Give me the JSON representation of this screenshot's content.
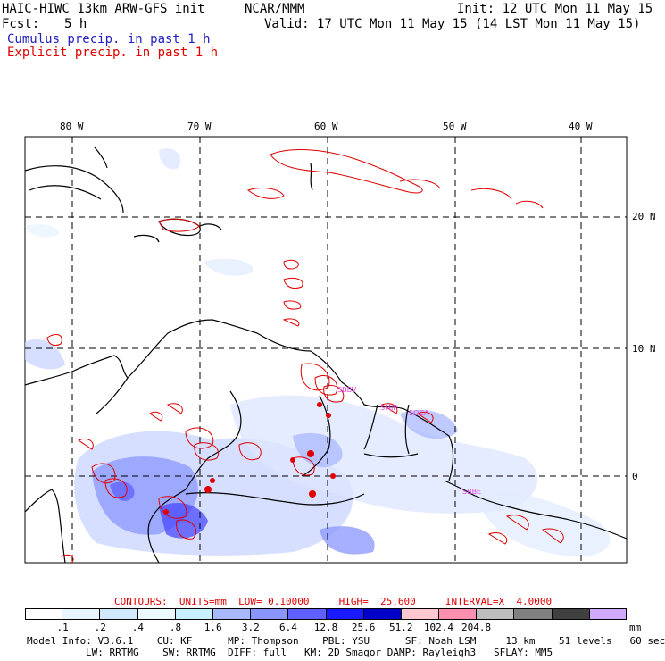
{
  "header": {
    "model": "HAIC-HIWC 13km ARW-GFS init",
    "org": "NCAR/MMM",
    "init": "Init: 12 UTC Mon 11 May 15",
    "fcst_label": "Fcst:",
    "fcst_value": "5 h",
    "valid": "Valid: 17 UTC Mon 11 May 15 (14 LST Mon 11 May 15)",
    "legend_cumulus": "Cumulus precip. in past 1 h",
    "legend_explicit": "Explicit precip. in past 1 h"
  },
  "colors": {
    "cumulus": "#2020c0",
    "explicit": "#e00000",
    "land_outline": "#000000",
    "station_label": "#e040e0"
  },
  "map": {
    "lon_labels": [
      "80 W",
      "70 W",
      "60 W",
      "50 W",
      "40 W"
    ],
    "lat_labels": [
      "20 N",
      "10 N",
      "0"
    ],
    "station_labels": [
      "SBBV",
      "SMJP",
      "SOCA",
      "SBBE"
    ]
  },
  "contours": {
    "text": "CONTOURS:  UNITS=mm  LOW= 0.10000     HIGH=  25.600     INTERVAL=X  4.0000"
  },
  "colorbar": {
    "colors": [
      "#ffffff",
      "#e8f4ff",
      "#d0e8ff",
      "#eafaff",
      "#c8f0ff",
      "#aab8ff",
      "#8a96ff",
      "#6060ff",
      "#1a1aff",
      "#0000c8",
      "#ffc8d0",
      "#ff90b0",
      "#bdbdbd",
      "#808080",
      "#404040",
      "#d0a8ff"
    ],
    "labels": [
      ".1",
      ".2",
      ".4",
      ".8",
      "1.6",
      "3.2",
      "6.4",
      "12.8",
      "25.6",
      "51.2",
      "102.4",
      "204.8"
    ],
    "unit": "mm"
  },
  "footer": {
    "line1": "Model Info: V3.6.1    CU: KF      MP: Thompson    PBL: YSU      SF: Noah LSM     13 km    51 levels   60 sec",
    "line2": "LW: RRTMG    SW: RRTMG  DIFF: full   KM: 2D Smagor DAMP: Rayleigh3   SFLAY: MM5"
  }
}
